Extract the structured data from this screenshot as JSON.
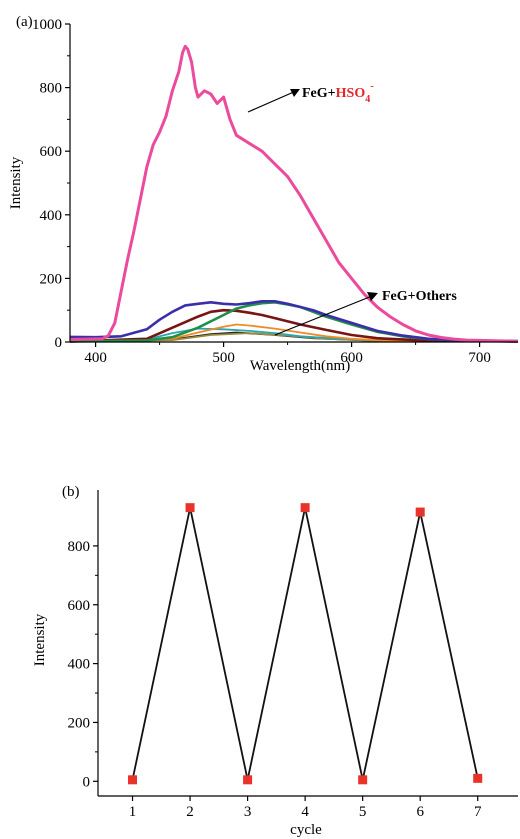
{
  "chart_data": [
    {
      "type": "line",
      "panel_label": "(a)",
      "xlabel": "Wavelength(nm)",
      "ylabel": "Intensity",
      "xlim": [
        380,
        730
      ],
      "ylim": [
        0,
        1000
      ],
      "xticks": [
        400,
        500,
        600,
        700
      ],
      "yticks": [
        0,
        200,
        400,
        600,
        800,
        1000
      ],
      "grid": false,
      "series": [
        {
          "color": "#ec4a9c",
          "x": [
            380,
            405,
            410,
            415,
            420,
            425,
            430,
            435,
            440,
            445,
            450,
            455,
            460,
            465,
            468,
            470,
            472,
            475,
            478,
            480,
            485,
            490,
            495,
            500,
            505,
            510,
            520,
            530,
            540,
            550,
            560,
            570,
            580,
            590,
            600,
            610,
            620,
            630,
            640,
            650,
            660,
            670,
            680,
            690,
            700,
            720,
            730
          ],
          "y": [
            8,
            10,
            20,
            60,
            160,
            260,
            350,
            450,
            550,
            620,
            660,
            710,
            790,
            850,
            910,
            930,
            920,
            880,
            800,
            770,
            790,
            780,
            750,
            770,
            700,
            650,
            625,
            600,
            560,
            520,
            460,
            390,
            320,
            250,
            200,
            150,
            110,
            80,
            55,
            35,
            22,
            14,
            9,
            6,
            5,
            3,
            2
          ]
        },
        {
          "color": "#3b2ea8",
          "x": [
            380,
            400,
            420,
            440,
            450,
            460,
            470,
            480,
            490,
            500,
            510,
            520,
            530,
            540,
            550,
            560,
            570,
            580,
            600,
            620,
            640,
            660,
            680,
            700,
            730
          ],
          "y": [
            16,
            15,
            18,
            40,
            70,
            95,
            115,
            120,
            125,
            120,
            118,
            122,
            128,
            128,
            120,
            110,
            100,
            85,
            60,
            35,
            20,
            10,
            6,
            4,
            3
          ]
        },
        {
          "color": "#1f8f4a",
          "x": [
            380,
            440,
            460,
            480,
            500,
            510,
            520,
            530,
            540,
            550,
            560,
            570,
            580,
            600,
            620,
            640,
            660,
            690,
            730
          ],
          "y": [
            2,
            5,
            15,
            45,
            85,
            105,
            115,
            122,
            125,
            118,
            110,
            95,
            80,
            55,
            32,
            18,
            9,
            4,
            2
          ]
        },
        {
          "color": "#7a1414",
          "x": [
            380,
            440,
            460,
            480,
            490,
            500,
            510,
            520,
            530,
            540,
            560,
            580,
            600,
            620,
            650,
            690,
            730
          ],
          "y": [
            2,
            10,
            45,
            80,
            95,
            100,
            98,
            92,
            85,
            75,
            55,
            38,
            22,
            12,
            6,
            3,
            2
          ]
        },
        {
          "color": "#f08a24",
          "x": [
            380,
            460,
            480,
            500,
            510,
            520,
            540,
            560,
            580,
            600,
            630,
            680,
            730
          ],
          "y": [
            1,
            10,
            30,
            48,
            55,
            52,
            42,
            30,
            18,
            10,
            4,
            2,
            1
          ]
        },
        {
          "color": "#2aa6b0",
          "x": [
            380,
            440,
            460,
            480,
            500,
            520,
            540,
            560,
            590,
            630,
            730
          ],
          "y": [
            1,
            8,
            28,
            42,
            40,
            35,
            28,
            18,
            10,
            4,
            1
          ]
        },
        {
          "color": "#9c8a3a",
          "x": [
            380,
            460,
            490,
            520,
            550,
            580,
            620,
            730
          ],
          "y": [
            1,
            6,
            22,
            28,
            20,
            10,
            4,
            1
          ]
        },
        {
          "color": "#222222",
          "x": [
            380,
            460,
            490,
            510,
            540,
            570,
            610,
            730
          ],
          "y": [
            1,
            8,
            25,
            30,
            22,
            12,
            5,
            1
          ]
        }
      ],
      "annotations": [
        {
          "label_main": "FeG+",
          "label_accent": "HSO",
          "label_sub": "4",
          "label_sup": "-",
          "accent_color": "#e8232a"
        },
        {
          "label_main": "FeG+Others"
        }
      ]
    },
    {
      "type": "line",
      "panel_label": "(b)",
      "xlabel": "cycle",
      "ylabel": "Intensity",
      "xlim": [
        0.4,
        7.7
      ],
      "ylim": [
        -50,
        990
      ],
      "xticks": [
        1,
        2,
        3,
        4,
        5,
        6,
        7
      ],
      "yticks": [
        0,
        200,
        400,
        600,
        800
      ],
      "grid": false,
      "series": [
        {
          "color": "#111111",
          "marker_color": "#e8322a",
          "x": [
            1,
            2,
            3,
            4,
            5,
            6,
            7
          ],
          "y": [
            5,
            930,
            5,
            930,
            5,
            915,
            10
          ]
        }
      ]
    }
  ]
}
